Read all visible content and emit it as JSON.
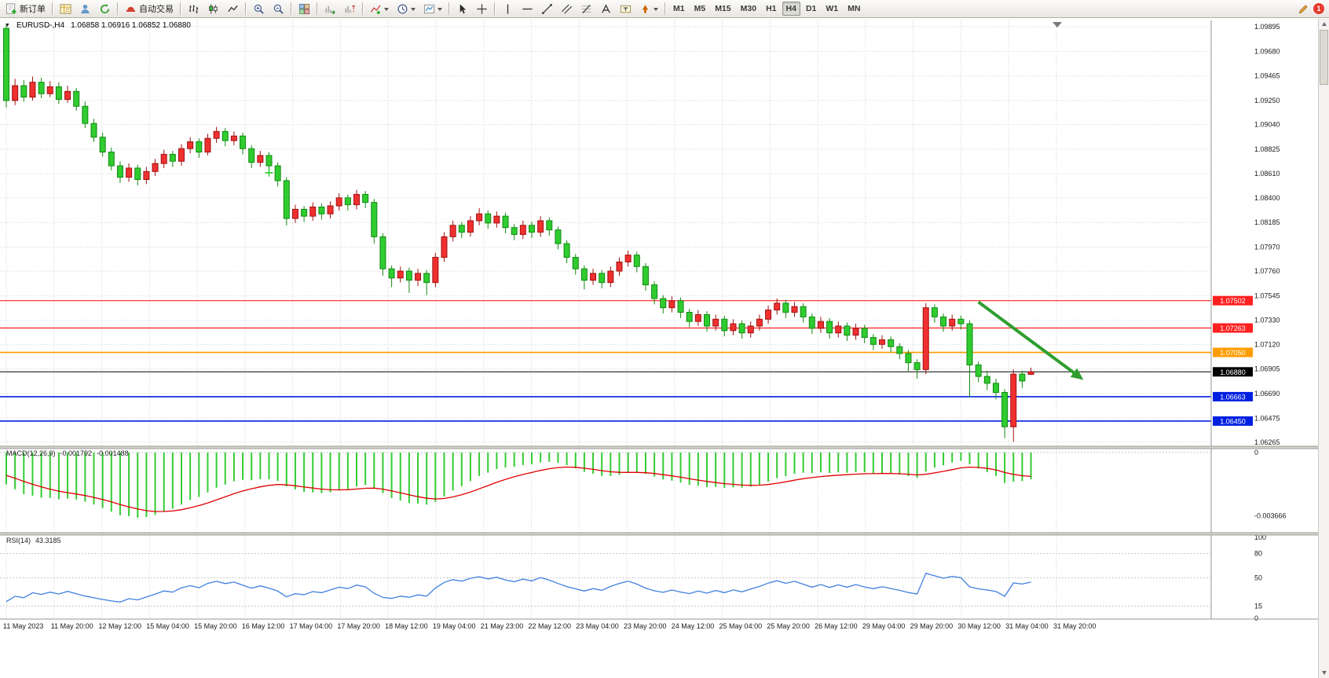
{
  "header": {
    "expander": "▼"
  },
  "toolbar": {
    "new_order_label": "新订单",
    "auto_trading_label": "自动交易",
    "timeframes": [
      "M1",
      "M5",
      "M15",
      "M30",
      "H1",
      "H4",
      "D1",
      "W1",
      "MN"
    ],
    "active_timeframe": "H4",
    "badge": "1",
    "items": [
      {
        "name": "new-order-button",
        "icon": "new-order-icon",
        "label": "新订单"
      },
      {
        "type": "separator"
      },
      {
        "name": "market-watch-button",
        "icon": "market-watch-icon"
      },
      {
        "name": "data-window-button",
        "icon": "data-window-icon"
      },
      {
        "name": "navigator-button",
        "icon": "navigator-icon"
      },
      {
        "type": "separator"
      },
      {
        "name": "auto-trading-button",
        "icon": "auto-trading-icon",
        "label": "自动交易"
      },
      {
        "type": "separator"
      },
      {
        "name": "bar-chart-button",
        "icon": "bar-chart-icon"
      },
      {
        "name": "candlestick-chart-button",
        "icon": "candlestick-chart-icon"
      },
      {
        "name": "line-chart-button",
        "icon": "line-chart-icon"
      },
      {
        "type": "separator"
      },
      {
        "name": "zoom-in-button",
        "icon": "zoom-in-icon"
      },
      {
        "name": "zoom-out-button",
        "icon": "zoom-out-icon"
      },
      {
        "type": "separator"
      },
      {
        "name": "tile-windows-button",
        "icon": "tile-windows-icon"
      },
      {
        "type": "separator"
      },
      {
        "name": "auto-scroll-button",
        "icon": "auto-scroll-icon"
      },
      {
        "name": "chart-shift-button",
        "icon": "chart-shift-icon"
      },
      {
        "type": "separator"
      },
      {
        "name": "indicators-button",
        "icon": "indicators-icon",
        "dropdown": true
      },
      {
        "name": "periods-button",
        "icon": "periods-icon",
        "dropdown": true
      },
      {
        "name": "templates-button",
        "icon": "templates-icon",
        "dropdown": true
      },
      {
        "type": "separator"
      },
      {
        "name": "cursor-button",
        "icon": "cursor-icon"
      },
      {
        "name": "crosshair-button",
        "icon": "crosshair-icon"
      },
      {
        "type": "separator"
      },
      {
        "name": "vertical-line-button",
        "icon": "vertical-line-icon"
      },
      {
        "name": "horizontal-line-button",
        "icon": "horizontal-line-icon"
      },
      {
        "name": "trendline-button",
        "icon": "trendline-icon"
      },
      {
        "name": "channel-button",
        "icon": "channel-icon"
      },
      {
        "name": "fibonacci-button",
        "icon": "fibonacci-icon"
      },
      {
        "name": "text-button",
        "icon": "text-icon"
      },
      {
        "name": "label-button",
        "icon": "label-icon"
      },
      {
        "name": "arrows-button",
        "icon": "arrows-icon",
        "dropdown": true
      },
      {
        "type": "separator"
      }
    ]
  },
  "chart_data": [
    {
      "type": "candlestick",
      "title": "EURUSD-,H4",
      "symbol": "EURUSD-",
      "timeframe": "H4",
      "ohlc_text": "1.06858 1.06916 1.06852 1.06880",
      "last_ohlc": {
        "open": "1.06858",
        "high": "1.06916",
        "low": "1.06852",
        "close": "1.06880"
      },
      "ylim": [
        1.0623,
        1.0995
      ],
      "grid": true,
      "colors": {
        "bull": "#f03030",
        "bull_border": "#a01010",
        "bear": "#2fcc2f",
        "bear_border": "#128a12",
        "grid": "#d3d3d3",
        "background": "#ffffff",
        "axis_text": "#1a1a1a"
      },
      "y_ticks": [
        "1.09895",
        "1.09680",
        "1.09465",
        "1.09250",
        "1.09040",
        "1.08825",
        "1.08610",
        "1.08400",
        "1.08185",
        "1.07970",
        "1.07760",
        "1.07545",
        "1.07330",
        "1.07120",
        "1.06905",
        "1.06690",
        "1.06475",
        "1.06265"
      ],
      "x_labels": [
        "11 May 2023",
        "11 May 20:00",
        "12 May 12:00",
        "15 May 04:00",
        "15 May 20:00",
        "16 May 12:00",
        "17 May 04:00",
        "17 May 20:00",
        "18 May 12:00",
        "19 May 04:00",
        "21 May 23:00",
        "22 May 12:00",
        "23 May 04:00",
        "23 May 20:00",
        "24 May 12:00",
        "25 May 04:00",
        "25 May 20:00",
        "26 May 12:00",
        "29 May 04:00",
        "29 May 20:00",
        "30 May 12:00",
        "31 May 04:00",
        "31 May 20:00"
      ],
      "h_lines": [
        {
          "price": 1.07502,
          "label": "1.07502",
          "color": "#ff2020",
          "width": 1.2
        },
        {
          "price": 1.07263,
          "label": "1.07263",
          "color": "#ff2020",
          "width": 1.2
        },
        {
          "price": 1.0705,
          "label": "1.07050",
          "color": "#ff9c00",
          "width": 1.6
        },
        {
          "price": 1.0688,
          "label": "1.06880",
          "color": "#000000",
          "width": 1
        },
        {
          "price": 1.06663,
          "label": "1.06663",
          "color": "#0020e0",
          "width": 1.6
        },
        {
          "price": 1.0645,
          "label": "1.06450",
          "color": "#0020e0",
          "width": 1.6
        }
      ],
      "annotations": {
        "trend_arrow": {
          "from_index": 111,
          "from_price": 1.0749,
          "to_index": 123,
          "to_price": 1.0681,
          "color": "#2f9e2f"
        },
        "plus_marker": {
          "index": 30,
          "price": 1.0862,
          "color": "#33cc33"
        },
        "shift_marker_index": 120
      },
      "ohlc": [
        [
          1.0988,
          1.0992,
          1.0919,
          1.0925
        ],
        [
          1.0925,
          1.0944,
          1.0921,
          1.0938
        ],
        [
          1.0938,
          1.0943,
          1.0924,
          1.0928
        ],
        [
          1.0928,
          1.0946,
          1.0925,
          1.0941
        ],
        [
          1.0941,
          1.0945,
          1.0927,
          1.0931
        ],
        [
          1.0931,
          1.0942,
          1.0928,
          1.0937
        ],
        [
          1.0937,
          1.0941,
          1.0922,
          1.0926
        ],
        [
          1.0926,
          1.0938,
          1.0923,
          1.0933
        ],
        [
          1.0933,
          1.0936,
          1.0916,
          1.092
        ],
        [
          1.092,
          1.0924,
          1.0901,
          1.0905
        ],
        [
          1.0905,
          1.0909,
          1.0889,
          1.0893
        ],
        [
          1.0893,
          1.0897,
          1.0876,
          1.088
        ],
        [
          1.088,
          1.0884,
          1.0864,
          1.0868
        ],
        [
          1.0868,
          1.0872,
          1.0853,
          1.0858
        ],
        [
          1.0858,
          1.087,
          1.0854,
          1.0866
        ],
        [
          1.0866,
          1.0869,
          1.0851,
          1.0856
        ],
        [
          1.0856,
          1.0867,
          1.0852,
          1.0863
        ],
        [
          1.0863,
          1.0874,
          1.0859,
          1.087
        ],
        [
          1.087,
          1.0882,
          1.0866,
          1.0878
        ],
        [
          1.0878,
          1.0881,
          1.0867,
          1.0872
        ],
        [
          1.0872,
          1.0887,
          1.0868,
          1.0883
        ],
        [
          1.0883,
          1.0893,
          1.0879,
          1.0889
        ],
        [
          1.0889,
          1.0892,
          1.0875,
          1.088
        ],
        [
          1.088,
          1.0896,
          1.0877,
          1.0892
        ],
        [
          1.0892,
          1.0902,
          1.0888,
          1.0898
        ],
        [
          1.0898,
          1.0901,
          1.0885,
          1.089
        ],
        [
          1.089,
          1.0898,
          1.0886,
          1.0894
        ],
        [
          1.0894,
          1.0897,
          1.0878,
          1.0883
        ],
        [
          1.0883,
          1.0886,
          1.0866,
          1.0871
        ],
        [
          1.0871,
          1.0881,
          1.0867,
          1.0877
        ],
        [
          1.0877,
          1.088,
          1.0863,
          1.0868
        ],
        [
          1.0868,
          1.0871,
          1.085,
          1.0855
        ],
        [
          1.0855,
          1.0858,
          1.0816,
          1.0822
        ],
        [
          1.0822,
          1.0834,
          1.0818,
          1.083
        ],
        [
          1.083,
          1.0833,
          1.0819,
          1.0824
        ],
        [
          1.0824,
          1.0836,
          1.082,
          1.0832
        ],
        [
          1.0832,
          1.0835,
          1.0821,
          1.0826
        ],
        [
          1.0826,
          1.0837,
          1.0822,
          1.0833
        ],
        [
          1.0833,
          1.0844,
          1.0829,
          1.084
        ],
        [
          1.084,
          1.0843,
          1.0829,
          1.0834
        ],
        [
          1.0834,
          1.0847,
          1.083,
          1.0843
        ],
        [
          1.0843,
          1.0846,
          1.0831,
          1.0836
        ],
        [
          1.0836,
          1.0839,
          1.08,
          1.0806
        ],
        [
          1.0806,
          1.0809,
          1.0772,
          1.0778
        ],
        [
          1.0778,
          1.0781,
          1.0762,
          1.077
        ],
        [
          1.077,
          1.078,
          1.0766,
          1.0776
        ],
        [
          1.0776,
          1.0779,
          1.0757,
          1.0768
        ],
        [
          1.0768,
          1.0778,
          1.0763,
          1.0774
        ],
        [
          1.0774,
          1.0777,
          1.0755,
          1.0766
        ],
        [
          1.0766,
          1.0792,
          1.0762,
          1.0788
        ],
        [
          1.0788,
          1.081,
          1.0784,
          1.0806
        ],
        [
          1.0806,
          1.082,
          1.0802,
          1.0816
        ],
        [
          1.0816,
          1.0819,
          1.0805,
          1.081
        ],
        [
          1.081,
          1.0824,
          1.0806,
          1.082
        ],
        [
          1.082,
          1.0831,
          1.0816,
          1.0826
        ],
        [
          1.0826,
          1.0829,
          1.0813,
          1.0818
        ],
        [
          1.0818,
          1.0828,
          1.0814,
          1.0824
        ],
        [
          1.0824,
          1.0827,
          1.0809,
          1.0814
        ],
        [
          1.0814,
          1.0817,
          1.0803,
          1.0808
        ],
        [
          1.0808,
          1.082,
          1.0804,
          1.0816
        ],
        [
          1.0816,
          1.0819,
          1.0805,
          1.081
        ],
        [
          1.081,
          1.0824,
          1.0806,
          1.082
        ],
        [
          1.082,
          1.0823,
          1.0807,
          1.0812
        ],
        [
          1.0812,
          1.0815,
          1.0795,
          1.08
        ],
        [
          1.08,
          1.0803,
          1.0783,
          1.0788
        ],
        [
          1.0788,
          1.0791,
          1.0773,
          1.0778
        ],
        [
          1.0778,
          1.0781,
          1.076,
          1.0768
        ],
        [
          1.0768,
          1.0778,
          1.0764,
          1.0774
        ],
        [
          1.0774,
          1.0777,
          1.0761,
          1.0766
        ],
        [
          1.0766,
          1.078,
          1.0762,
          1.0776
        ],
        [
          1.0776,
          1.0788,
          1.0772,
          1.0784
        ],
        [
          1.0784,
          1.0794,
          1.078,
          1.079
        ],
        [
          1.079,
          1.0793,
          1.0775,
          1.078
        ],
        [
          1.078,
          1.0783,
          1.0759,
          1.0764
        ],
        [
          1.0764,
          1.0767,
          1.0747,
          1.0752
        ],
        [
          1.0752,
          1.0755,
          1.0739,
          1.0744
        ],
        [
          1.0744,
          1.0754,
          1.074,
          1.075
        ],
        [
          1.075,
          1.0753,
          1.0735,
          1.074
        ],
        [
          1.074,
          1.0743,
          1.0727,
          1.0732
        ],
        [
          1.0732,
          1.0742,
          1.0728,
          1.0738
        ],
        [
          1.0738,
          1.0741,
          1.0723,
          1.0728
        ],
        [
          1.0728,
          1.0738,
          1.0724,
          1.0734
        ],
        [
          1.0734,
          1.0737,
          1.0719,
          1.0724
        ],
        [
          1.0724,
          1.0734,
          1.072,
          1.073
        ],
        [
          1.073,
          1.0733,
          1.0717,
          1.0722
        ],
        [
          1.0722,
          1.0732,
          1.0718,
          1.0728
        ],
        [
          1.0728,
          1.0738,
          1.0724,
          1.0734
        ],
        [
          1.0734,
          1.0746,
          1.073,
          1.0742
        ],
        [
          1.0742,
          1.0752,
          1.0738,
          1.0748
        ],
        [
          1.0748,
          1.0751,
          1.0735,
          1.074
        ],
        [
          1.074,
          1.0749,
          1.0736,
          1.0745
        ],
        [
          1.0745,
          1.0748,
          1.0731,
          1.0736
        ],
        [
          1.0736,
          1.0739,
          1.0721,
          1.0726
        ],
        [
          1.0726,
          1.0736,
          1.0722,
          1.0732
        ],
        [
          1.0732,
          1.0735,
          1.0717,
          1.0722
        ],
        [
          1.0722,
          1.0732,
          1.0718,
          1.0728
        ],
        [
          1.0728,
          1.0731,
          1.0715,
          1.072
        ],
        [
          1.072,
          1.073,
          1.0716,
          1.0726
        ],
        [
          1.0726,
          1.0729,
          1.0713,
          1.0718
        ],
        [
          1.0718,
          1.0721,
          1.0707,
          1.0712
        ],
        [
          1.0712,
          1.072,
          1.0708,
          1.0716
        ],
        [
          1.0716,
          1.0719,
          1.0705,
          1.071
        ],
        [
          1.071,
          1.0713,
          1.0699,
          1.0704
        ],
        [
          1.0704,
          1.0707,
          1.0688,
          1.0696
        ],
        [
          1.0696,
          1.0699,
          1.0682,
          1.069
        ],
        [
          1.069,
          1.0748,
          1.0686,
          1.0744
        ],
        [
          1.0744,
          1.0747,
          1.0731,
          1.0736
        ],
        [
          1.0736,
          1.0739,
          1.0723,
          1.0728
        ],
        [
          1.0728,
          1.0738,
          1.0724,
          1.0734
        ],
        [
          1.0734,
          1.0737,
          1.0725,
          1.073
        ],
        [
          1.073,
          1.0733,
          1.0666,
          1.0694
        ],
        [
          1.0694,
          1.0697,
          1.0679,
          1.0684
        ],
        [
          1.0684,
          1.0689,
          1.0672,
          1.0678
        ],
        [
          1.0678,
          1.0682,
          1.0664,
          1.067
        ],
        [
          1.067,
          1.0673,
          1.063,
          1.064
        ],
        [
          1.064,
          1.069,
          1.0627,
          1.0686
        ],
        [
          1.0686,
          1.0689,
          1.0674,
          1.068
        ],
        [
          1.06858,
          1.06916,
          1.06852,
          1.0688
        ]
      ]
    },
    {
      "type": "macd",
      "label": "MACD(12,26,9)",
      "macd_value": "-0.001792",
      "signal_value": "-0.001488",
      "fast": 12,
      "slow": 26,
      "signal_period": 9,
      "y_ticks": [
        "0",
        "-0.003666"
      ],
      "histogram_color": "#33cc33",
      "signal_color": "#e00000"
    },
    {
      "type": "rsi",
      "label": "RSI(14)",
      "value": "43.3185",
      "period": 14,
      "levels": [
        80,
        50,
        15
      ],
      "y_ticks": [
        "100",
        "80",
        "50",
        "15",
        "0"
      ],
      "line_color": "#4080df"
    }
  ]
}
